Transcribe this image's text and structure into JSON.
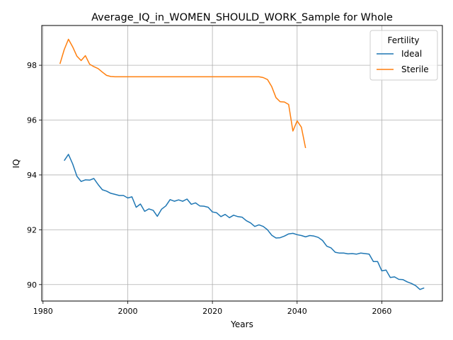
{
  "chart_data": {
    "type": "line",
    "title": "Average_IQ_in_WOMEN_SHOULD_WORK_Sample for Whole",
    "xlabel": "Years",
    "ylabel": "IQ",
    "xlim": [
      1979.7,
      2074.3
    ],
    "ylim": [
      89.4,
      99.45
    ],
    "xticks": [
      1980,
      2000,
      2020,
      2040,
      2060
    ],
    "yticks": [
      90,
      92,
      94,
      96,
      98
    ],
    "grid": true,
    "legend": {
      "title": "Fertility",
      "placement": "top-right"
    },
    "series": [
      {
        "name": "Ideal",
        "color": "#1f77b4",
        "x": [
          1985,
          1986,
          1987,
          1988,
          1989,
          1990,
          1991,
          1992,
          1993,
          1994,
          1995,
          1996,
          1997,
          1998,
          1999,
          2000,
          2001,
          2002,
          2003,
          2004,
          2005,
          2006,
          2007,
          2008,
          2009,
          2010,
          2011,
          2012,
          2013,
          2014,
          2015,
          2016,
          2017,
          2018,
          2019,
          2020,
          2021,
          2022,
          2023,
          2024,
          2025,
          2026,
          2027,
          2028,
          2029,
          2030,
          2031,
          2032,
          2033,
          2034,
          2035,
          2036,
          2037,
          2038,
          2039,
          2040,
          2041,
          2042,
          2043,
          2044,
          2045,
          2046,
          2047,
          2048,
          2049,
          2050,
          2051,
          2052,
          2053,
          2054,
          2055,
          2056,
          2057,
          2058,
          2059,
          2060,
          2061,
          2062,
          2063,
          2064,
          2065,
          2066,
          2067,
          2068,
          2069,
          2070
        ],
        "y": [
          94.52,
          94.75,
          94.4,
          93.95,
          93.76,
          93.82,
          93.81,
          93.87,
          93.65,
          93.46,
          93.41,
          93.33,
          93.29,
          93.25,
          93.25,
          93.16,
          93.2,
          92.82,
          92.94,
          92.67,
          92.76,
          92.71,
          92.49,
          92.75,
          92.87,
          93.1,
          93.04,
          93.09,
          93.04,
          93.12,
          92.93,
          92.98,
          92.87,
          92.86,
          92.82,
          92.65,
          92.62,
          92.48,
          92.56,
          92.44,
          92.53,
          92.48,
          92.46,
          92.33,
          92.25,
          92.12,
          92.18,
          92.12,
          92.0,
          91.8,
          91.7,
          91.71,
          91.77,
          91.85,
          91.87,
          91.82,
          91.79,
          91.74,
          91.79,
          91.77,
          91.72,
          91.61,
          91.4,
          91.34,
          91.18,
          91.15,
          91.15,
          91.12,
          91.13,
          91.11,
          91.15,
          91.13,
          91.11,
          90.84,
          90.84,
          90.5,
          90.53,
          90.26,
          90.28,
          90.19,
          90.18,
          90.1,
          90.04,
          89.96,
          89.82,
          89.88
        ]
      },
      {
        "name": "Sterile",
        "color": "#ff7f0e",
        "x": [
          1984,
          1985,
          1986,
          1987,
          1988,
          1989,
          1990,
          1991,
          1992,
          1993,
          1994,
          1995,
          1996,
          1997,
          1998,
          1999,
          2000,
          2001,
          2002,
          2003,
          2004,
          2005,
          2006,
          2007,
          2008,
          2009,
          2010,
          2011,
          2012,
          2013,
          2014,
          2015,
          2016,
          2017,
          2018,
          2019,
          2020,
          2021,
          2022,
          2023,
          2024,
          2025,
          2026,
          2027,
          2028,
          2029,
          2030,
          2031,
          2032,
          2033,
          2034,
          2035,
          2036,
          2037,
          2038,
          2039,
          2040,
          2041,
          2042
        ],
        "y": [
          98.05,
          98.57,
          98.95,
          98.67,
          98.33,
          98.17,
          98.35,
          98.04,
          97.95,
          97.88,
          97.75,
          97.63,
          97.59,
          97.58,
          97.58,
          97.58,
          97.58,
          97.58,
          97.58,
          97.58,
          97.58,
          97.58,
          97.58,
          97.58,
          97.58,
          97.58,
          97.58,
          97.58,
          97.58,
          97.58,
          97.58,
          97.58,
          97.58,
          97.58,
          97.58,
          97.58,
          97.58,
          97.58,
          97.58,
          97.58,
          97.58,
          97.58,
          97.58,
          97.58,
          97.58,
          97.58,
          97.58,
          97.58,
          97.55,
          97.48,
          97.22,
          96.82,
          96.67,
          96.66,
          96.57,
          95.6,
          95.97,
          95.74,
          94.98
        ]
      }
    ]
  }
}
